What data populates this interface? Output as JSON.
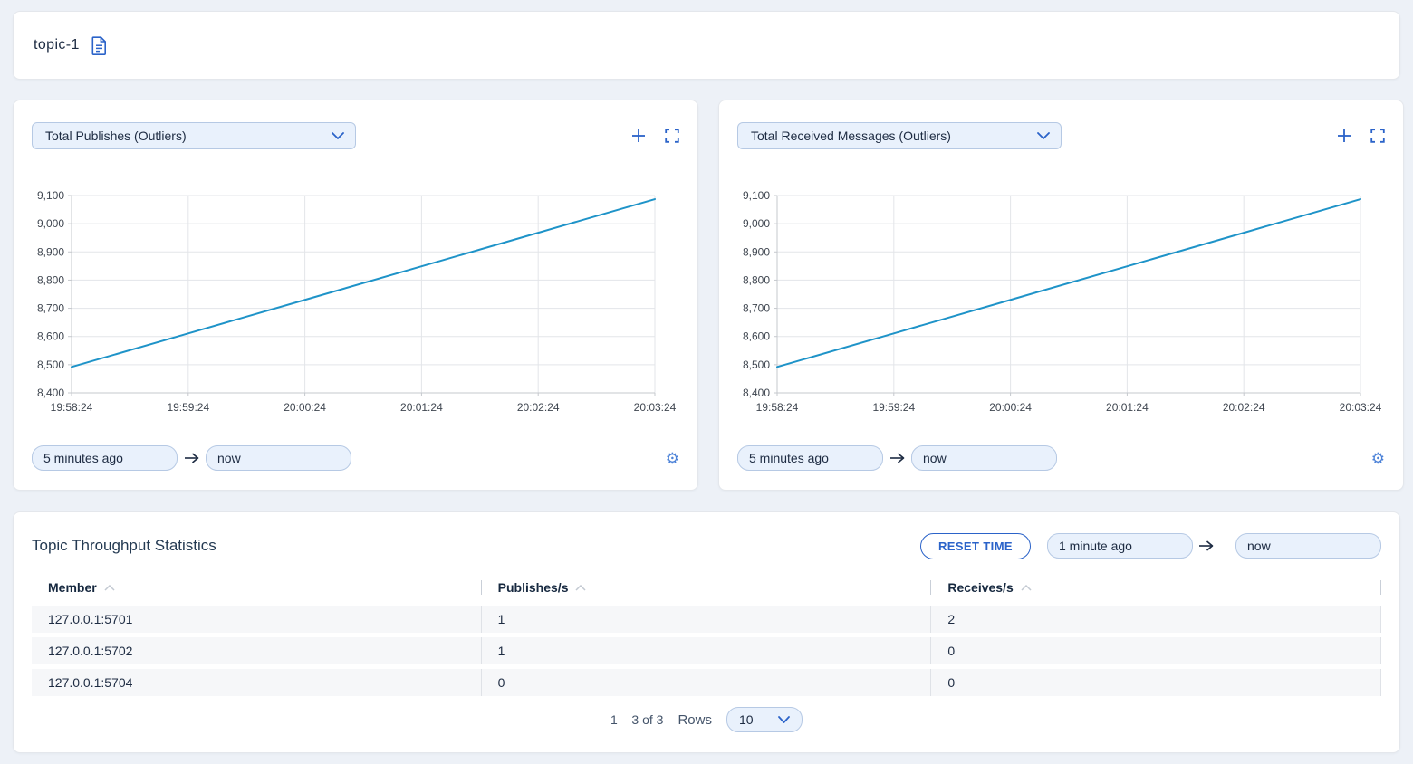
{
  "page": {
    "topic_title": "topic-1"
  },
  "colors": {
    "accent": "#2b63c9",
    "line": "#1e93c8",
    "grid": "#e3e5e9",
    "axis": "#c5c8cd",
    "input_bg": "#e9f1fc",
    "input_border": "#b6c9e4",
    "page_bg": "#edf1f7",
    "row_bg": "#f6f7f9"
  },
  "charts": [
    {
      "metric_label": "Total Publishes (Outliers)",
      "from_value": "5 minutes ago",
      "to_value": "now"
    },
    {
      "metric_label": "Total Received Messages (Outliers)",
      "from_value": "5 minutes ago",
      "to_value": "now"
    }
  ],
  "chart_data": [
    {
      "type": "line",
      "title": "Total Publishes (Outliers)",
      "x": [
        "19:58:24",
        "19:59:24",
        "20:00:24",
        "20:01:24",
        "20:02:24",
        "20:03:24"
      ],
      "series": [
        {
          "name": "Total Publishes",
          "values": [
            8492,
            8611,
            8730,
            8849,
            8968,
            9087
          ]
        }
      ],
      "ylim": [
        8400,
        9100
      ],
      "yticks": [
        8400,
        8500,
        8600,
        8700,
        8800,
        8900,
        9000,
        9100
      ],
      "ytick_labels": [
        "8,400",
        "8,500",
        "8,600",
        "8,700",
        "8,800",
        "8,900",
        "9,000",
        "9,100"
      ],
      "xlabel": "",
      "ylabel": "",
      "grid": true,
      "legend": "none"
    },
    {
      "type": "line",
      "title": "Total Received Messages (Outliers)",
      "x": [
        "19:58:24",
        "19:59:24",
        "20:00:24",
        "20:01:24",
        "20:02:24",
        "20:03:24"
      ],
      "series": [
        {
          "name": "Total Received Messages",
          "values": [
            8492,
            8611,
            8730,
            8849,
            8968,
            9087
          ]
        }
      ],
      "ylim": [
        8400,
        9100
      ],
      "yticks": [
        8400,
        8500,
        8600,
        8700,
        8800,
        8900,
        9000,
        9100
      ],
      "ytick_labels": [
        "8,400",
        "8,500",
        "8,600",
        "8,700",
        "8,800",
        "8,900",
        "9,000",
        "9,100"
      ],
      "xlabel": "",
      "ylabel": "",
      "grid": true,
      "legend": "none"
    }
  ],
  "table_panel": {
    "title": "Topic Throughput Statistics",
    "reset_button": "RESET TIME",
    "from_value": "1 minute ago",
    "to_value": "now",
    "columns": [
      "Member",
      "Publishes/s",
      "Receives/s"
    ],
    "rows": [
      [
        "127.0.0.1:5701",
        "1",
        "2"
      ],
      [
        "127.0.0.1:5702",
        "1",
        "0"
      ],
      [
        "127.0.0.1:5704",
        "0",
        "0"
      ]
    ],
    "pagination": {
      "range_label": "1 – 3 of 3",
      "rows_label": "Rows",
      "rows_per_page": "10"
    }
  }
}
